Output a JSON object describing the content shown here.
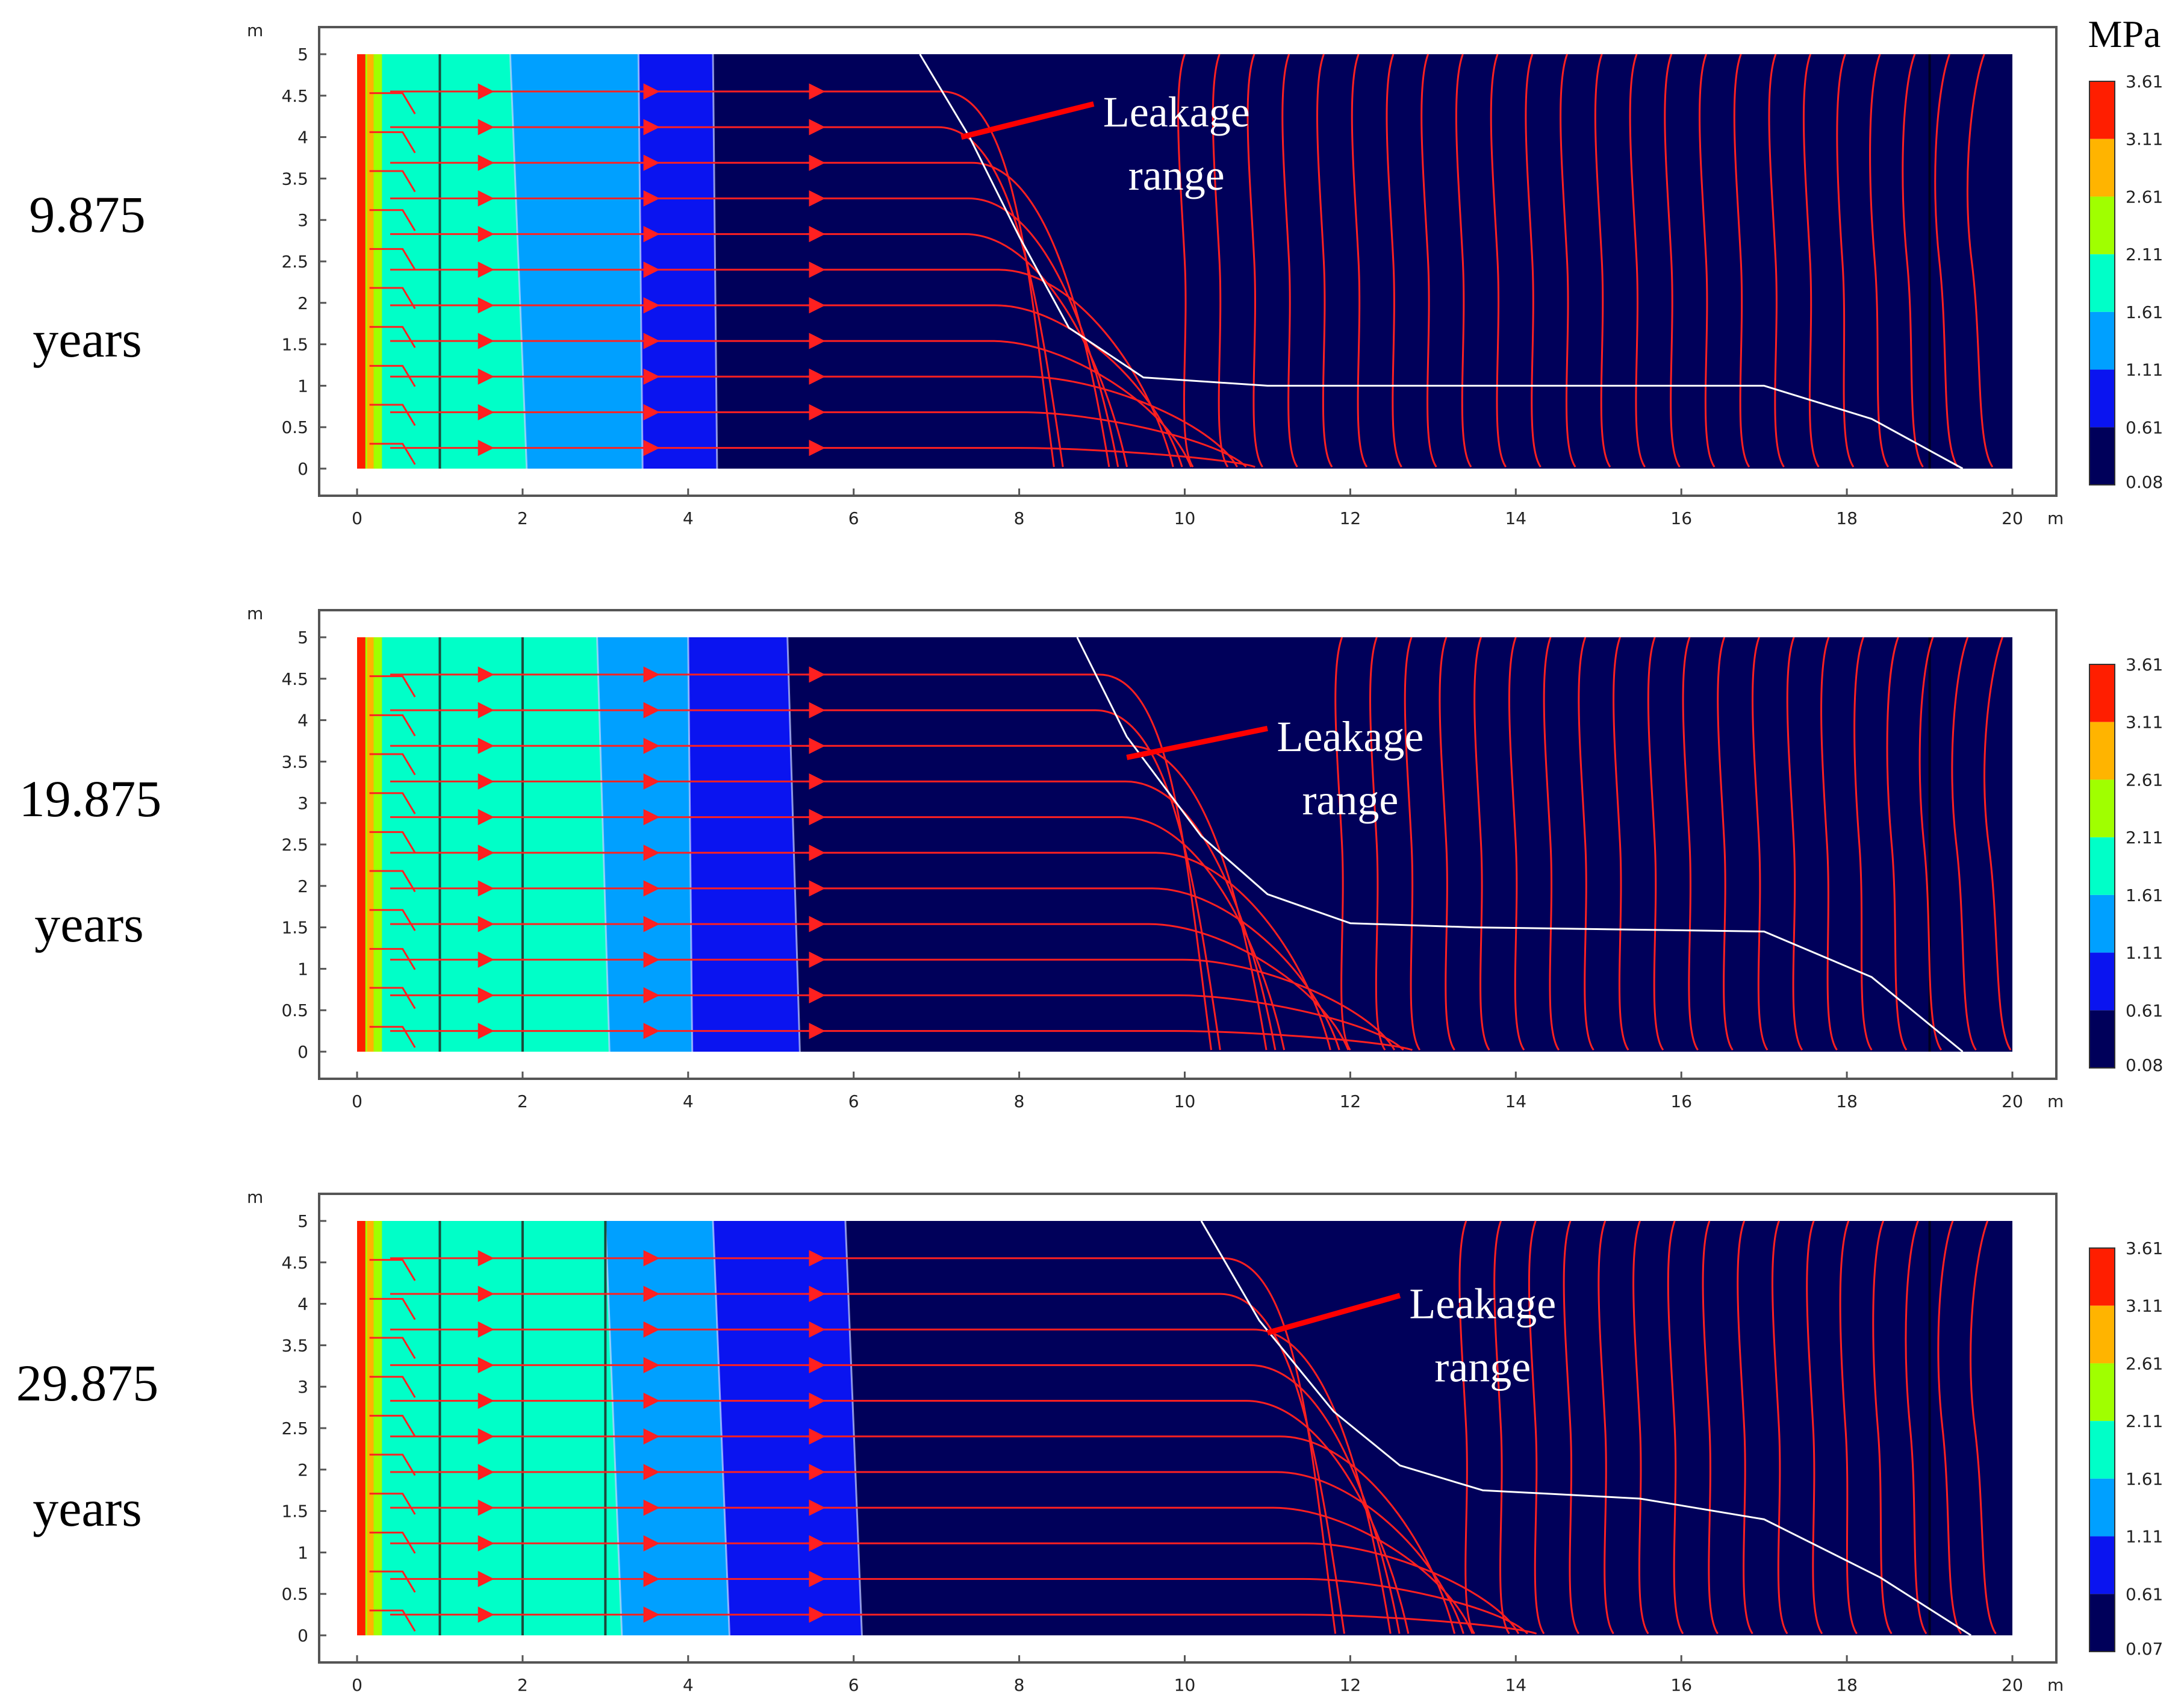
{
  "colors": {
    "band_0": "#00005a",
    "band_1": "#0a14f0",
    "band_2": "#00a0ff",
    "band_3": "#00ffc8",
    "band_4": "#a0ff00",
    "band_5": "#ffb400",
    "band_6": "#ff1e00",
    "streamline": "#ff2020",
    "boundary": "#c8d2ff",
    "leader": "#ff0000",
    "label_text": "#ffffff"
  },
  "axes": {
    "x_unit": "m",
    "y_unit": "m",
    "x_ticks": [
      "0",
      "2",
      "4",
      "6",
      "8",
      "10",
      "12",
      "14",
      "16",
      "18",
      "20"
    ],
    "y_ticks": [
      "0",
      "0.5",
      "1",
      "1.5",
      "2",
      "2.5",
      "3",
      "3.5",
      "4",
      "4.5",
      "5"
    ]
  },
  "colorbar_unit": "MPa",
  "panels": [
    {
      "time_value": "9.875",
      "time_unit": "years",
      "leakage_label_line1": "Leakage",
      "leakage_label_line2": "range",
      "colorbar_ticks": [
        "3.61",
        "3.11",
        "2.61",
        "2.11",
        "1.61",
        "1.11",
        "0.61",
        "0.08"
      ],
      "contour_top_x": [
        0.1,
        0.3,
        1.85,
        3.4,
        4.3
      ],
      "contour_bottom_x": [
        0.1,
        0.3,
        2.05,
        3.45,
        4.35
      ],
      "leakage_curve": [
        [
          6.8,
          5.0
        ],
        [
          7.4,
          4.0
        ],
        [
          8.0,
          2.8
        ],
        [
          8.6,
          1.7
        ],
        [
          9.5,
          1.1
        ],
        [
          11,
          1.0
        ],
        [
          17,
          1.0
        ],
        [
          18.3,
          0.6
        ],
        [
          19.4,
          0.0
        ]
      ],
      "leakage_label_pos": [
        9.9,
        4.2
      ],
      "leakage_leader_tip": [
        7.3,
        4.0
      ]
    },
    {
      "time_value": "19.875",
      "time_unit": "years",
      "leakage_label_line1": "Leakage",
      "leakage_label_line2": "range",
      "colorbar_ticks": [
        "3.61",
        "3.11",
        "2.61",
        "2.11",
        "1.61",
        "1.11",
        "0.61",
        "0.08"
      ],
      "contour_top_x": [
        0.1,
        0.3,
        2.9,
        4.0,
        5.2
      ],
      "contour_bottom_x": [
        0.1,
        0.3,
        3.05,
        4.05,
        5.35
      ],
      "leakage_curve": [
        [
          8.7,
          5.0
        ],
        [
          9.3,
          3.8
        ],
        [
          10.2,
          2.6
        ],
        [
          11.0,
          1.9
        ],
        [
          12.0,
          1.55
        ],
        [
          13.5,
          1.5
        ],
        [
          17,
          1.45
        ],
        [
          18.3,
          0.9
        ],
        [
          19.4,
          0.0
        ]
      ],
      "leakage_label_pos": [
        12.0,
        3.7
      ],
      "leakage_leader_tip": [
        9.3,
        3.55
      ]
    },
    {
      "time_value": "29.875",
      "time_unit": "years",
      "leakage_label_line1": "Leakage",
      "leakage_label_line2": "range",
      "colorbar_ticks": [
        "3.61",
        "3.11",
        "2.61",
        "2.11",
        "1.61",
        "1.11",
        "0.61",
        "0.07"
      ],
      "contour_top_x": [
        0.1,
        0.3,
        3.0,
        4.3,
        5.9
      ],
      "contour_bottom_x": [
        0.1,
        0.3,
        3.2,
        4.5,
        6.1
      ],
      "leakage_curve": [
        [
          10.2,
          5.0
        ],
        [
          10.9,
          3.8
        ],
        [
          11.8,
          2.7
        ],
        [
          12.6,
          2.05
        ],
        [
          13.6,
          1.75
        ],
        [
          15.5,
          1.65
        ],
        [
          17,
          1.4
        ],
        [
          18.4,
          0.7
        ],
        [
          19.5,
          0.0
        ]
      ],
      "leakage_label_pos": [
        13.6,
        3.9
      ],
      "leakage_leader_tip": [
        11.0,
        3.65
      ]
    }
  ]
}
